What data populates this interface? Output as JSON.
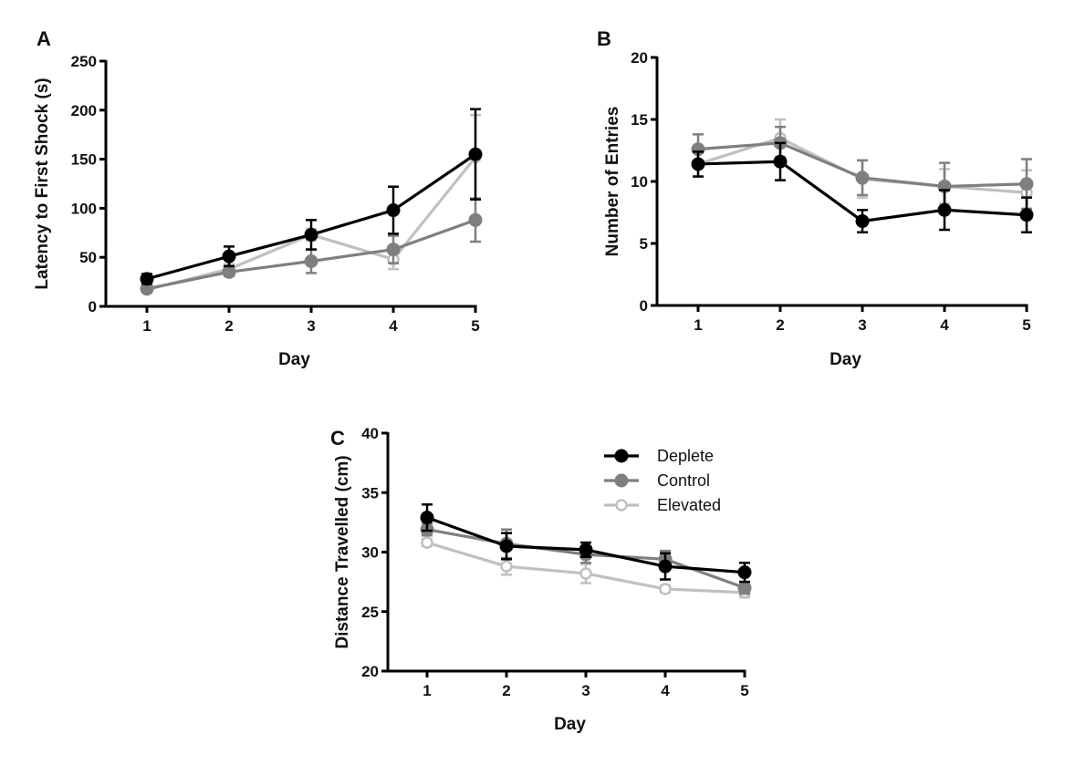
{
  "chart_data": [
    {
      "type": "line",
      "panel_label": "A",
      "title": "",
      "xlabel": "Day",
      "ylabel": "Latency to First Shock (s)",
      "x": [
        1,
        2,
        3,
        4,
        5
      ],
      "x_ticks": [
        "1",
        "2",
        "3",
        "4",
        "5"
      ],
      "ylim": [
        0,
        250
      ],
      "y_ticks": [
        "0",
        "50",
        "100",
        "150",
        "200",
        "250"
      ],
      "grid": false,
      "series": [
        {
          "name": "Deplete",
          "color": "#000000",
          "marker": "filled-circle",
          "values": [
            28,
            51,
            73,
            98,
            155
          ],
          "errors": [
            5,
            10,
            15,
            24,
            46
          ]
        },
        {
          "name": "Control",
          "color": "#7f7f7f",
          "marker": "filled-circle",
          "values": [
            18,
            35,
            46,
            58,
            88
          ],
          "errors": [
            3,
            4,
            12,
            14,
            22
          ]
        },
        {
          "name": "Elevated",
          "color": "#c0c0c0",
          "marker": "open-circle",
          "values": [
            17,
            38,
            73,
            48,
            152
          ],
          "errors": [
            3,
            5,
            6,
            10,
            43
          ]
        }
      ]
    },
    {
      "type": "line",
      "panel_label": "B",
      "title": "",
      "xlabel": "Day",
      "ylabel": "Number of Entries",
      "x": [
        1,
        2,
        3,
        4,
        5
      ],
      "x_ticks": [
        "1",
        "2",
        "3",
        "4",
        "5"
      ],
      "ylim": [
        0,
        20
      ],
      "y_ticks": [
        "0",
        "5",
        "10",
        "15",
        "20"
      ],
      "grid": false,
      "series": [
        {
          "name": "Deplete",
          "color": "#000000",
          "marker": "filled-circle",
          "values": [
            11.4,
            11.6,
            6.8,
            7.7,
            7.3
          ],
          "errors": [
            1.0,
            1.5,
            0.9,
            1.6,
            1.4
          ]
        },
        {
          "name": "Control",
          "color": "#7f7f7f",
          "marker": "filled-circle",
          "values": [
            12.6,
            13.1,
            10.3,
            9.6,
            9.8
          ],
          "errors": [
            1.2,
            1.3,
            1.4,
            1.9,
            2.0
          ]
        },
        {
          "name": "Elevated",
          "color": "#c0c0c0",
          "marker": "open-circle",
          "values": [
            11.4,
            13.5,
            10.2,
            9.6,
            9.1
          ],
          "errors": [
            1.0,
            1.5,
            1.5,
            1.4,
            1.8
          ]
        }
      ]
    },
    {
      "type": "line",
      "panel_label": "C",
      "title": "",
      "xlabel": "Day",
      "ylabel": "Distance Travelled (cm)",
      "x": [
        1,
        2,
        3,
        4,
        5
      ],
      "x_ticks": [
        "1",
        "2",
        "3",
        "4",
        "5"
      ],
      "ylim": [
        20,
        40
      ],
      "y_ticks": [
        "20",
        "25",
        "30",
        "35",
        "40"
      ],
      "grid": false,
      "legend": {
        "placement": "top-right",
        "entries": [
          "Deplete",
          "Control",
          "Elevated"
        ]
      },
      "series": [
        {
          "name": "Deplete",
          "color": "#000000",
          "marker": "filled-circle",
          "values": [
            32.9,
            30.5,
            30.2,
            28.8,
            28.3
          ],
          "errors": [
            1.1,
            1.1,
            0.6,
            1.1,
            0.8
          ]
        },
        {
          "name": "Control",
          "color": "#7f7f7f",
          "marker": "filled-circle",
          "values": [
            31.9,
            30.7,
            29.8,
            29.4,
            27.0
          ],
          "errors": [
            0.5,
            1.2,
            0.7,
            0.7,
            0.5
          ]
        },
        {
          "name": "Elevated",
          "color": "#c0c0c0",
          "marker": "open-circle",
          "values": [
            30.8,
            28.8,
            28.2,
            26.9,
            26.6
          ],
          "errors": [
            0.3,
            0.7,
            0.8,
            0.3,
            0.4
          ]
        }
      ]
    }
  ]
}
